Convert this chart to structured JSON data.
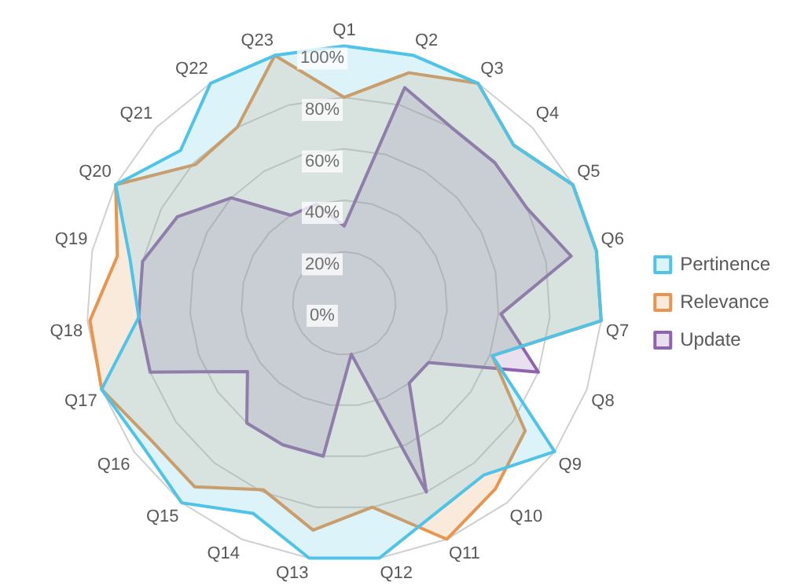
{
  "chart_data": {
    "type": "radar",
    "categories": [
      "Q1",
      "Q2",
      "Q3",
      "Q4",
      "Q5",
      "Q6",
      "Q7",
      "Q8",
      "Q9",
      "Q10",
      "Q11",
      "Q12",
      "Q13",
      "Q14",
      "Q15",
      "Q16",
      "Q17",
      "Q18",
      "Q19",
      "Q20",
      "Q21",
      "Q22",
      "Q23"
    ],
    "series": [
      {
        "name": "Pertinence",
        "color": "#4fc3e8",
        "values": [
          100,
          100,
          100,
          90,
          100,
          100,
          100,
          61,
          100,
          86,
          89,
          100,
          100,
          89,
          100,
          96,
          100,
          80,
          85,
          100,
          87,
          100,
          100
        ]
      },
      {
        "name": "Relevance",
        "color": "#e8954f",
        "values": [
          80,
          93,
          100,
          90,
          100,
          100,
          100,
          61,
          86,
          93,
          100,
          80,
          89,
          79,
          92,
          92,
          100,
          99,
          90,
          100,
          79,
          80,
          100
        ]
      },
      {
        "name": "Update",
        "color": "#8e63b0",
        "values": [
          30,
          87,
          80,
          80,
          80,
          90,
          61,
          80,
          40,
          40,
          80,
          20,
          60,
          60,
          60,
          46,
          80,
          80,
          80,
          73,
          60,
          40,
          40
        ]
      }
    ],
    "ylim": [
      0,
      100
    ],
    "yticks": [
      {
        "value": 0,
        "label": "0%"
      },
      {
        "value": 20,
        "label": "20%"
      },
      {
        "value": 40,
        "label": "40%"
      },
      {
        "value": 60,
        "label": "60%"
      },
      {
        "value": 80,
        "label": "80%"
      },
      {
        "value": 100,
        "label": "100%"
      }
    ],
    "grid": true,
    "legend": "right",
    "marker": "none",
    "line_style": "solid"
  }
}
